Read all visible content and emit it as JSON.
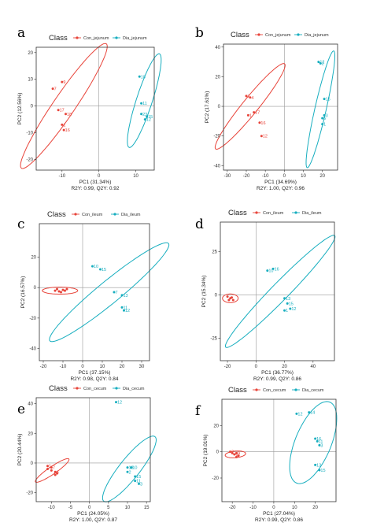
{
  "colors": {
    "con": "#e8443a",
    "dia": "#17aebf"
  },
  "chart_data": [
    {
      "panel": "a",
      "type": "scatter",
      "legend_title": "Class",
      "legend_items": [
        "Con_jejunum",
        "Dia_jejunum"
      ],
      "xlabel": "PC1 (31.34%)",
      "ylabel": "PC2 (12.56%)",
      "stats": "R2Y: 0.99, Q2Y: 0.92",
      "xlim": [
        -17,
        15
      ],
      "ylim": [
        -24,
        22
      ],
      "xticks": [
        -10,
        0,
        10
      ],
      "yticks": [
        -20,
        -10,
        0,
        10,
        20
      ],
      "series": [
        {
          "group": "con",
          "points": [
            [
              -10,
              9,
              "9"
            ],
            [
              -12.5,
              6.5,
              "7"
            ],
            [
              -11,
              -1.5,
              "17"
            ],
            [
              -9,
              -3,
              "18"
            ],
            [
              -10,
              -7,
              "1"
            ],
            [
              -9.5,
              -9,
              "16"
            ]
          ],
          "ellipse": {
            "cx": -9.5,
            "cy": 0,
            "rx": 26,
            "ry": 3.2,
            "angle": 64
          }
        },
        {
          "group": "dia",
          "points": [
            [
              11,
              11,
              "10"
            ],
            [
              11.5,
              1,
              "11"
            ],
            [
              11.5,
              -3,
              "23"
            ],
            [
              13,
              -4,
              "15"
            ],
            [
              12.5,
              -5,
              "12"
            ]
          ],
          "ellipse": {
            "cx": 12.3,
            "cy": 2,
            "rx": 18,
            "ry": 2.2,
            "angle": 77
          }
        }
      ]
    },
    {
      "panel": "b",
      "type": "scatter",
      "legend_title": "Class",
      "legend_items": [
        "Con_jejunum",
        "Dia_jejunum"
      ],
      "xlabel": "PC1 (34.69%)",
      "ylabel": "PC2 (17.61%)",
      "stats": "R2Y: 1.00, Q2Y: 0.96",
      "xlim": [
        -32,
        28
      ],
      "ylim": [
        -43,
        42
      ],
      "xticks": [
        -30,
        -20,
        -10,
        0,
        10,
        20
      ],
      "yticks": [
        -40,
        -20,
        0,
        20,
        40
      ],
      "series": [
        {
          "group": "con",
          "points": [
            [
              -20,
              7,
              "7"
            ],
            [
              -18,
              6,
              "4"
            ],
            [
              -16,
              -4,
              "17"
            ],
            [
              -19,
              -6,
              "1"
            ],
            [
              -13,
              -11,
              "16"
            ],
            [
              -12,
              -20,
              "12"
            ]
          ],
          "ellipse": {
            "cx": -18,
            "cy": 0,
            "rx": 34,
            "ry": 4.5,
            "angle": 58
          }
        },
        {
          "group": "dia",
          "points": [
            [
              18,
              30,
              "12"
            ],
            [
              19,
              29,
              "2"
            ],
            [
              21,
              5,
              "15"
            ],
            [
              20,
              -8,
              "5"
            ],
            [
              21,
              -6,
              "3"
            ],
            [
              20,
              -12,
              "1"
            ]
          ],
          "ellipse": {
            "cx": 19,
            "cy": -2,
            "rx": 40,
            "ry": 3.0,
            "angle": 80
          }
        }
      ]
    },
    {
      "panel": "c",
      "type": "scatter",
      "legend_title": "Class",
      "legend_items": [
        "Con_ileum",
        "Dia_ileum"
      ],
      "xlabel": "PC1 (37.15%)",
      "ylabel": "PC2 (16.57%)",
      "stats": "R2Y: 0.98, Q2Y: 0.84",
      "xlim": [
        -22,
        34
      ],
      "ylim": [
        -48,
        42
      ],
      "xticks": [
        -20,
        -10,
        0,
        10,
        20,
        30
      ],
      "yticks": [
        -40,
        -20,
        0,
        20
      ],
      "series": [
        {
          "group": "con",
          "points": [
            [
              -14,
              -2,
              ""
            ],
            [
              -12,
              -2.5,
              ""
            ],
            [
              -10,
              -1.5,
              ""
            ],
            [
              -13,
              -1,
              ""
            ],
            [
              -9,
              -2,
              ""
            ],
            [
              -11,
              -3,
              ""
            ],
            [
              -8,
              -1,
              ""
            ]
          ],
          "ellipse": {
            "cx": -11.5,
            "cy": -2,
            "rx": 9,
            "ry": 2.3,
            "angle": 0
          }
        },
        {
          "group": "dia",
          "points": [
            [
              5,
              14,
              "10"
            ],
            [
              9,
              12,
              "15"
            ],
            [
              16,
              -3,
              "7"
            ],
            [
              20,
              -5,
              "13"
            ],
            [
              20,
              -13,
              "11"
            ],
            [
              21,
              -15,
              "12"
            ]
          ],
          "ellipse": {
            "cx": 13.5,
            "cy": -3,
            "rx": 44,
            "ry": 6.5,
            "angle": 47
          }
        }
      ]
    },
    {
      "panel": "d",
      "type": "scatter",
      "legend_title": "Class",
      "legend_items": [
        "Con_ileum",
        "Dia_ileum"
      ],
      "xlabel": "PC1 (36.77%)",
      "ylabel": "PC2 (15.34%)",
      "stats": "R2Y: 0.99, Q2Y: 0.86",
      "xlim": [
        -25,
        55
      ],
      "ylim": [
        -38,
        42
      ],
      "xticks": [
        -20,
        0,
        20,
        40
      ],
      "yticks": [
        -25,
        0,
        25
      ],
      "series": [
        {
          "group": "con",
          "points": [
            [
              -20,
              -1,
              ""
            ],
            [
              -18,
              -2,
              ""
            ],
            [
              -19,
              -3,
              ""
            ],
            [
              -17,
              -1.5,
              ""
            ],
            [
              -16,
              -3,
              ""
            ]
          ],
          "ellipse": {
            "cx": -18,
            "cy": -2,
            "rx": 5.5,
            "ry": 2.5,
            "angle": 0
          }
        },
        {
          "group": "dia",
          "points": [
            [
              8,
              14,
              "10"
            ],
            [
              12,
              15,
              "16"
            ],
            [
              20,
              -2,
              "13"
            ],
            [
              22,
              -5,
              "15"
            ],
            [
              20,
              -9,
              "1"
            ],
            [
              24,
              -8,
              "12"
            ]
          ],
          "ellipse": {
            "cx": 17,
            "cy": 2,
            "rx": 50,
            "ry": 5.5,
            "angle": 40
          }
        }
      ]
    },
    {
      "panel": "e",
      "type": "scatter",
      "legend_title": "Class",
      "legend_items": [
        "Con_cecum",
        "Dia_cecum"
      ],
      "xlabel": "PC1 (24.05%)",
      "ylabel": "PC2 (20.44%)",
      "stats": "R2Y: 1.00, Q2Y: 0.87",
      "xlim": [
        -14,
        16
      ],
      "ylim": [
        -26,
        44
      ],
      "xticks": [
        -10,
        -5,
        0,
        5,
        10,
        15
      ],
      "yticks": [
        -20,
        0,
        20,
        40
      ],
      "series": [
        {
          "group": "con",
          "points": [
            [
              -11,
              -2,
              "1"
            ],
            [
              -10,
              -3,
              "7"
            ],
            [
              -11,
              -4,
              ""
            ],
            [
              -10,
              -5,
              ""
            ],
            [
              -9,
              -6,
              "6"
            ],
            [
              -8.5,
              -7,
              ""
            ],
            [
              -9,
              -8,
              ""
            ]
          ],
          "ellipse": {
            "cx": -9.8,
            "cy": -5,
            "rx": 9,
            "ry": 1.5,
            "angle": 62
          }
        },
        {
          "group": "dia",
          "points": [
            [
              7,
              41,
              "12"
            ],
            [
              10,
              -3,
              "13"
            ],
            [
              11,
              -3,
              "10"
            ],
            [
              10,
              -6,
              "2"
            ],
            [
              12,
              -9,
              "15"
            ],
            [
              12,
              -12,
              "11"
            ],
            [
              13,
              -14,
              "3"
            ]
          ],
          "ellipse": {
            "cx": 10.5,
            "cy": -4,
            "rx": 23,
            "ry": 3.2,
            "angle": 74
          }
        }
      ]
    },
    {
      "panel": "f",
      "type": "scatter",
      "legend_title": "Class",
      "legend_items": [
        "Con_cecum",
        "Dia_cecum"
      ],
      "xlabel": "PC1 (27.04%)",
      "ylabel": "PC2 (19.01%)",
      "stats": "R2Y: 0.99, Q2Y: 0.86",
      "xlim": [
        -25,
        30
      ],
      "ylim": [
        -38,
        40
      ],
      "xticks": [
        -20,
        -10,
        0,
        10,
        20
      ],
      "yticks": [
        -20,
        0,
        20
      ],
      "series": [
        {
          "group": "con",
          "points": [
            [
              -21,
              0,
              "2"
            ],
            [
              -20,
              -1,
              ""
            ],
            [
              -19,
              -2,
              "6"
            ],
            [
              -18,
              -1,
              "9"
            ],
            [
              -17,
              -3,
              ""
            ],
            [
              -18,
              -4,
              ""
            ]
          ],
          "ellipse": {
            "cx": -18.5,
            "cy": -2,
            "rx": 5,
            "ry": 2.5,
            "angle": 10
          }
        },
        {
          "group": "dia",
          "points": [
            [
              11,
              29,
              "12"
            ],
            [
              17,
              30,
              "14"
            ],
            [
              20,
              10,
              "16"
            ],
            [
              21,
              8,
              "11"
            ],
            [
              22,
              5,
              "3"
            ],
            [
              20,
              -10,
              "13"
            ],
            [
              22,
              -14,
              "15"
            ]
          ],
          "ellipse": {
            "cx": 19,
            "cy": 7,
            "rx": 32,
            "ry": 9,
            "angle": 77
          }
        }
      ]
    }
  ]
}
